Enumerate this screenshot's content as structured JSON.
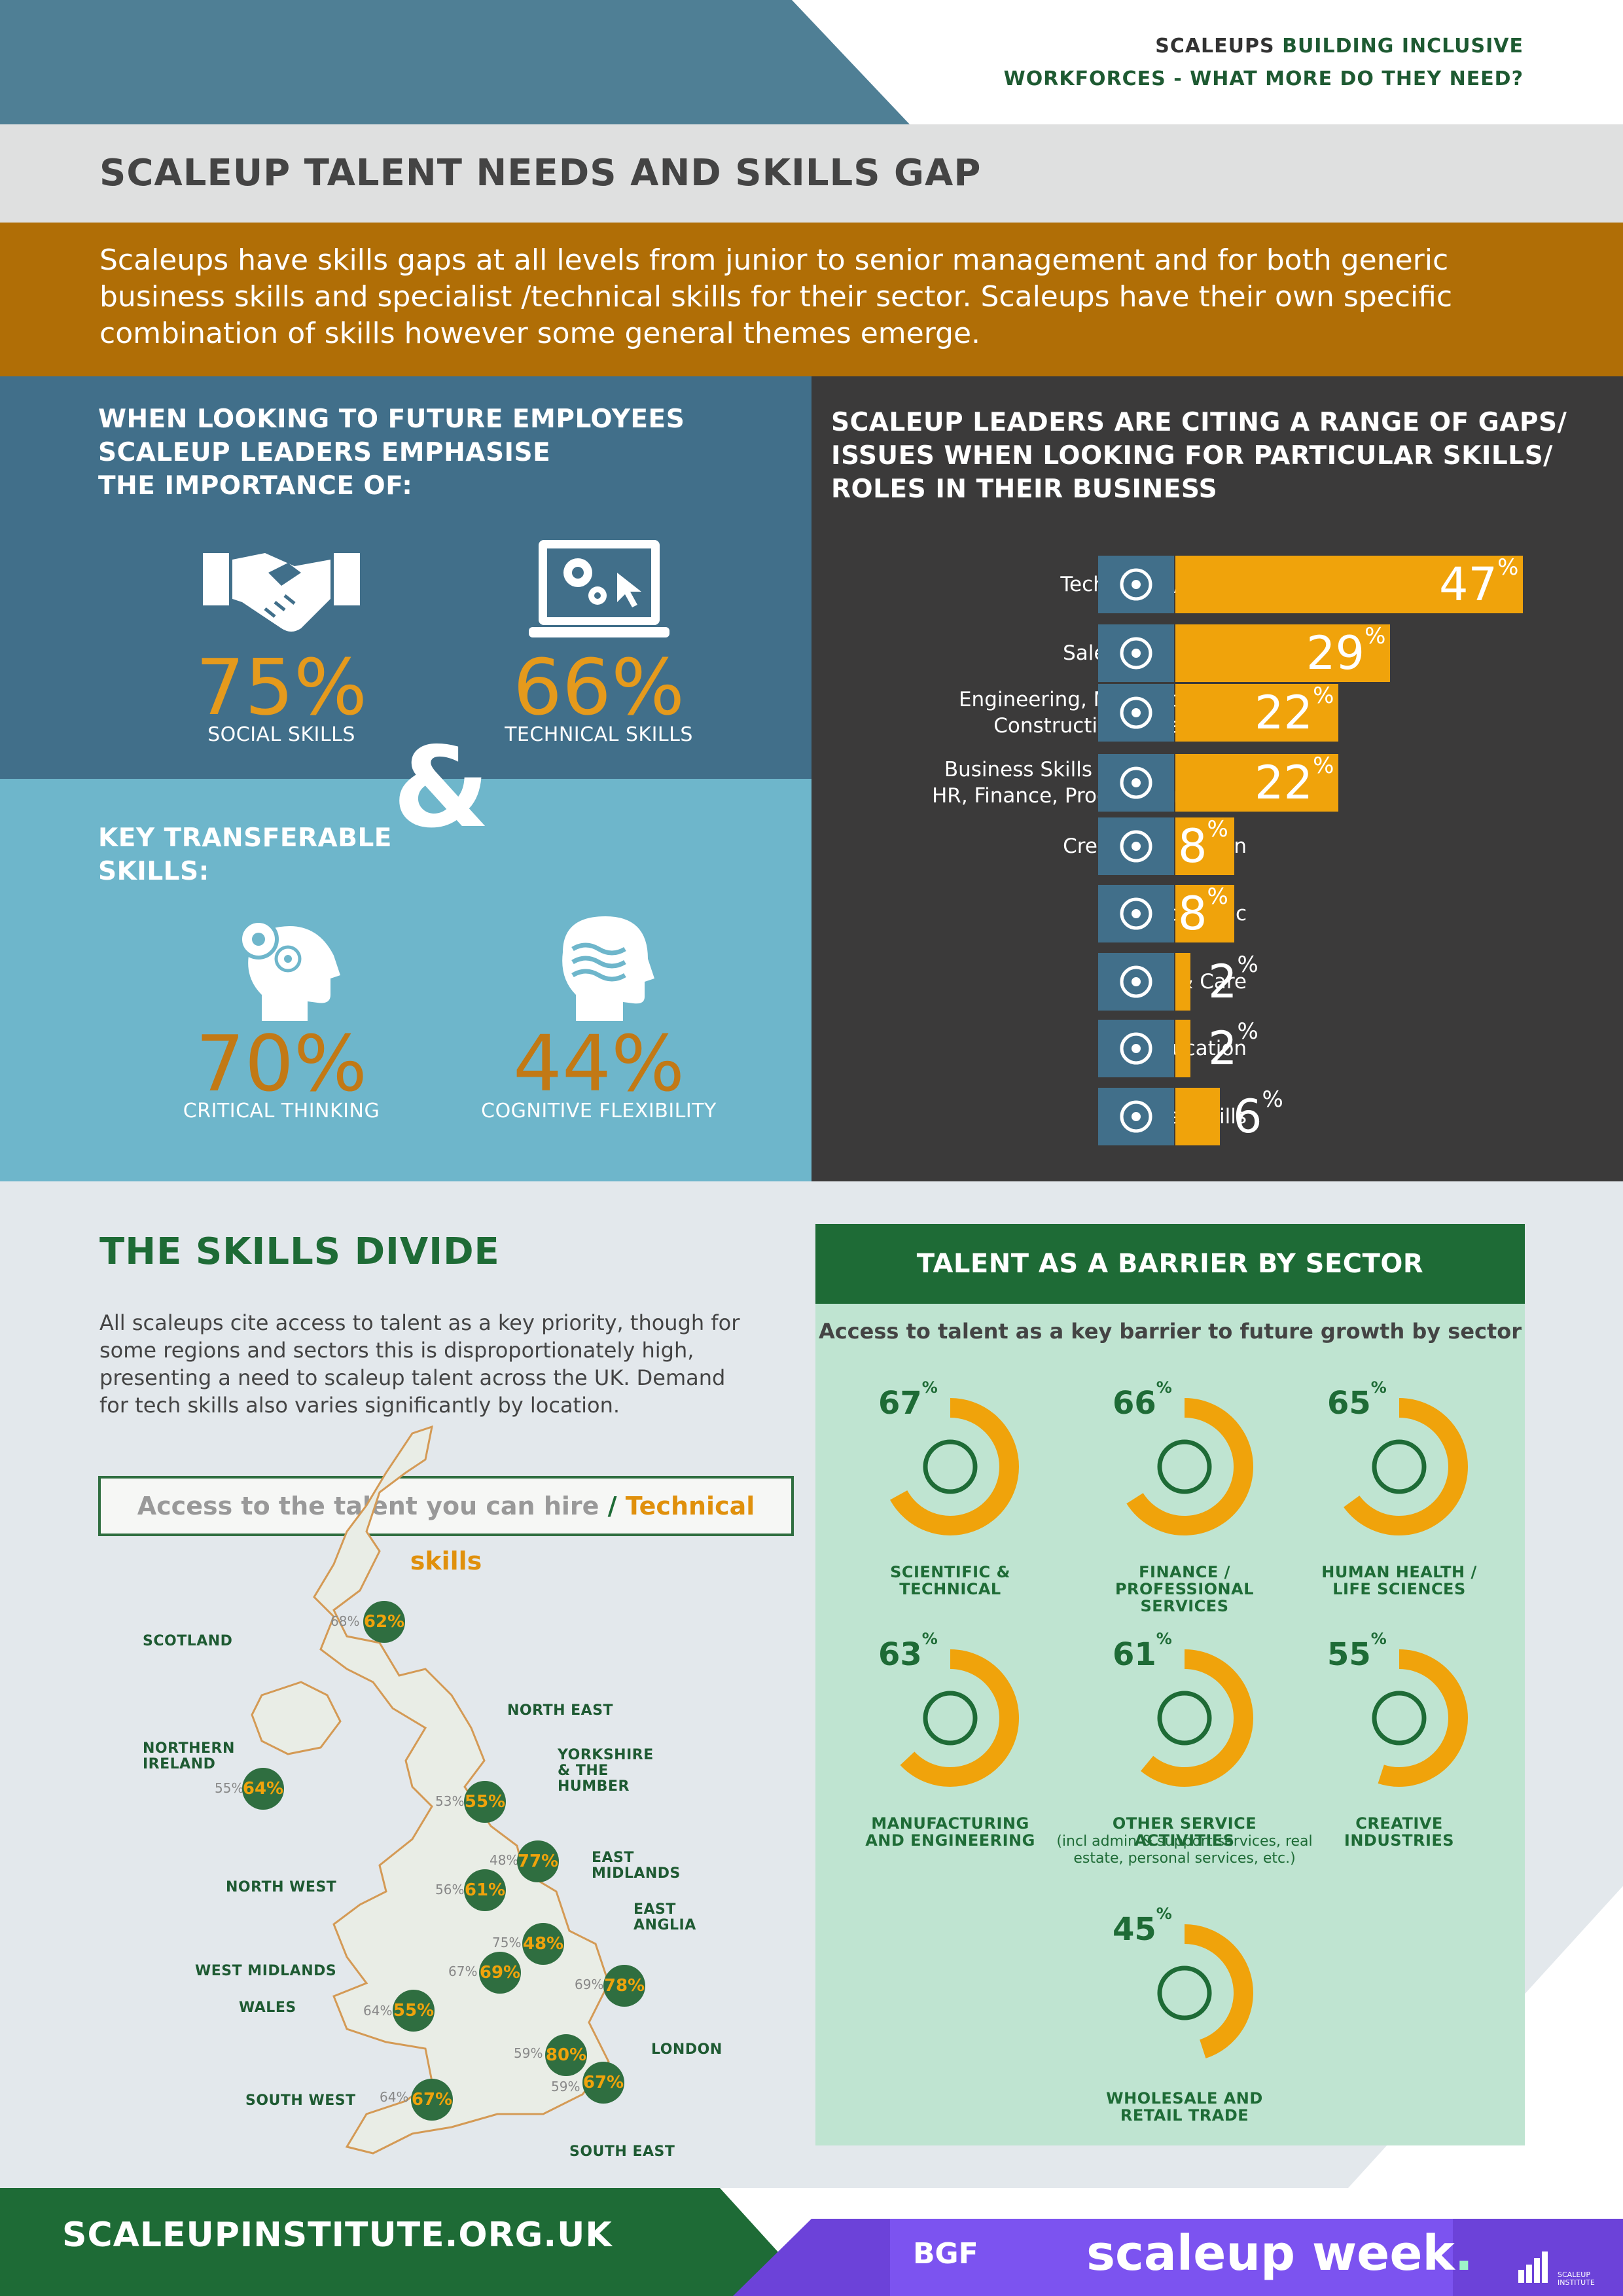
{
  "header": {
    "line1_dark": "SCALEUPS",
    "line1_green": "BUILDING INCLUSIVE",
    "line2": "WORKFORCES - WHAT MORE DO THEY NEED?"
  },
  "title": "SCALEUP TALENT NEEDS AND SKILLS GAP",
  "intro": "Scaleups have skills gaps at all levels from junior to senior management and for both generic business skills and specialist /technical skills for their sector. Scaleups have their own specific combination of skills however some general themes emerge.",
  "future_employees": {
    "heading": [
      "WHEN LOOKING TO FUTURE EMPLOYEES",
      "SCALEUP LEADERS EMPHASISE",
      "THE IMPORTANCE OF:"
    ],
    "items": [
      {
        "pct": "75%",
        "label": "SOCIAL SKILLS",
        "icon": "handshake-icon"
      },
      {
        "pct": "66%",
        "label": "TECHNICAL SKILLS",
        "icon": "laptop-gears-icon"
      }
    ],
    "ampersand": "&"
  },
  "transferable": {
    "heading": [
      "KEY TRANSFERABLE",
      "SKILLS:"
    ],
    "items": [
      {
        "pct": "70%",
        "label": "CRITICAL THINKING",
        "icon": "head-gears-icon"
      },
      {
        "pct": "44%",
        "label": "COGNITIVE FLEXIBILITY",
        "icon": "head-waves-icon"
      }
    ]
  },
  "gaps": {
    "heading": [
      "SCALEUP LEADERS ARE CITING A RANGE OF GAPS/",
      "ISSUES WHEN LOOKING FOR PARTICULAR SKILLS/",
      "ROLES IN THEIR BUSINESS"
    ]
  },
  "chart_data": {
    "type": "bar",
    "orientation": "horizontal",
    "categories": [
      "Technology/Digital",
      "Sales & Marketing",
      "Engineering, Manufacturing, Construction & Transport",
      "Business Skills (Management, HR, Finance, Procurement, etc)",
      "Creative & Design",
      "Scientific",
      "Health & Care",
      "Education",
      "Other Skills"
    ],
    "category_lines": [
      [
        "Technology/Digital"
      ],
      [
        "Sales & Marketing"
      ],
      [
        "Engineering, Manufacturing,",
        "Construction & Transport"
      ],
      [
        "Business Skills (Management,",
        "HR, Finance, Procurement, etc)"
      ],
      [
        "Creative & Design"
      ],
      [
        "Scientific"
      ],
      [
        "Health & Care"
      ],
      [
        "Education"
      ],
      [
        "Other Skills"
      ]
    ],
    "values": [
      47,
      29,
      22,
      22,
      8,
      8,
      2,
      2,
      6
    ],
    "unit": "%",
    "icons": [
      "touch-icon",
      "megaphone-chart-icon",
      "crane-gear-icon",
      "magnifier-document-icon",
      "pencil-icon",
      "brain-flask-icon",
      "nurse-hat-icon",
      "graduation-cap-icon",
      "hand-gears-icon"
    ],
    "bar_color": "#f0a30b",
    "icon_bg": "#416f8a"
  },
  "skills_divide": {
    "heading": "THE SKILLS DIVIDE",
    "text": "All scaleups cite access to talent as a key priority, though for some regions and sectors this is disproportionately high, presenting a need to scaleup talent across the UK. Demand for tech skills also varies significantly by location.",
    "key_a": "Access to the talent you can hire",
    "key_sep": "/",
    "key_b": "Technical skills"
  },
  "regions": [
    {
      "name": "SCOTLAND",
      "access": "68%",
      "tech": "62%"
    },
    {
      "name": "NORTHERN IRELAND",
      "access": "55%",
      "tech": "64%"
    },
    {
      "name": "NORTH EAST",
      "access": "53%",
      "tech": "55%"
    },
    {
      "name": "YORKSHIRE & THE HUMBER",
      "access": "48%",
      "tech": "77%"
    },
    {
      "name": "NORTH WEST",
      "access": "56%",
      "tech": "61%"
    },
    {
      "name": "EAST MIDLANDS",
      "access": "75%",
      "tech": "48%"
    },
    {
      "name": "EAST ANGLIA",
      "access": "69%",
      "tech": "78%"
    },
    {
      "name": "WEST MIDLANDS",
      "access": "67%",
      "tech": "69%"
    },
    {
      "name": "WALES",
      "access": "64%",
      "tech": "55%"
    },
    {
      "name": "LONDON",
      "access": "59%",
      "tech": "80%"
    },
    {
      "name": "SOUTH EAST",
      "access": "59%",
      "tech": "67%"
    },
    {
      "name": "SOUTH WEST",
      "access": "64%",
      "tech": "67%"
    }
  ],
  "sectors": {
    "heading": "TALENT AS A BARRIER BY SECTOR",
    "subheading": "Access to talent as a key barrier to future growth by sector",
    "items": [
      {
        "pct": 67,
        "label": [
          "SCIENTIFIC &",
          "TECHNICAL"
        ],
        "icon": "brain-flask-icon"
      },
      {
        "pct": 66,
        "label": [
          "FINANCE / PROFESSIONAL",
          "SERVICES"
        ],
        "icon": "pound-coins-icon"
      },
      {
        "pct": 65,
        "label": [
          "HUMAN HEALTH /",
          "LIFE SCIENCES"
        ],
        "icon": "nurse-hat-icon"
      },
      {
        "pct": 63,
        "label": [
          "MANUFACTURING",
          "AND ENGINEERING"
        ],
        "icon": "crane-tools-icon"
      },
      {
        "pct": 61,
        "label": [
          "OTHER SERVICE ACTIVITIES"
        ],
        "note": [
          "(incl admin & support services, real",
          "estate, personal services, etc.)"
        ],
        "icon": "hand-gears-icon"
      },
      {
        "pct": 55,
        "label": [
          "CREATIVE",
          "INDUSTRIES"
        ],
        "icon": "pencil-icon"
      },
      {
        "pct": 45,
        "label": [
          "WHOLESALE AND",
          "RETAIL TRADE"
        ],
        "icon": "shopping-cart-icon"
      }
    ],
    "ring_color": "#f0a30b"
  },
  "footer": {
    "url": "SCALEUPINSTITUTE.ORG.UK",
    "bgf": "BGF",
    "scaleup_week": "scaleup week",
    "dot": ".",
    "institute": [
      "SCALEUP",
      "INSTITUTE"
    ]
  }
}
